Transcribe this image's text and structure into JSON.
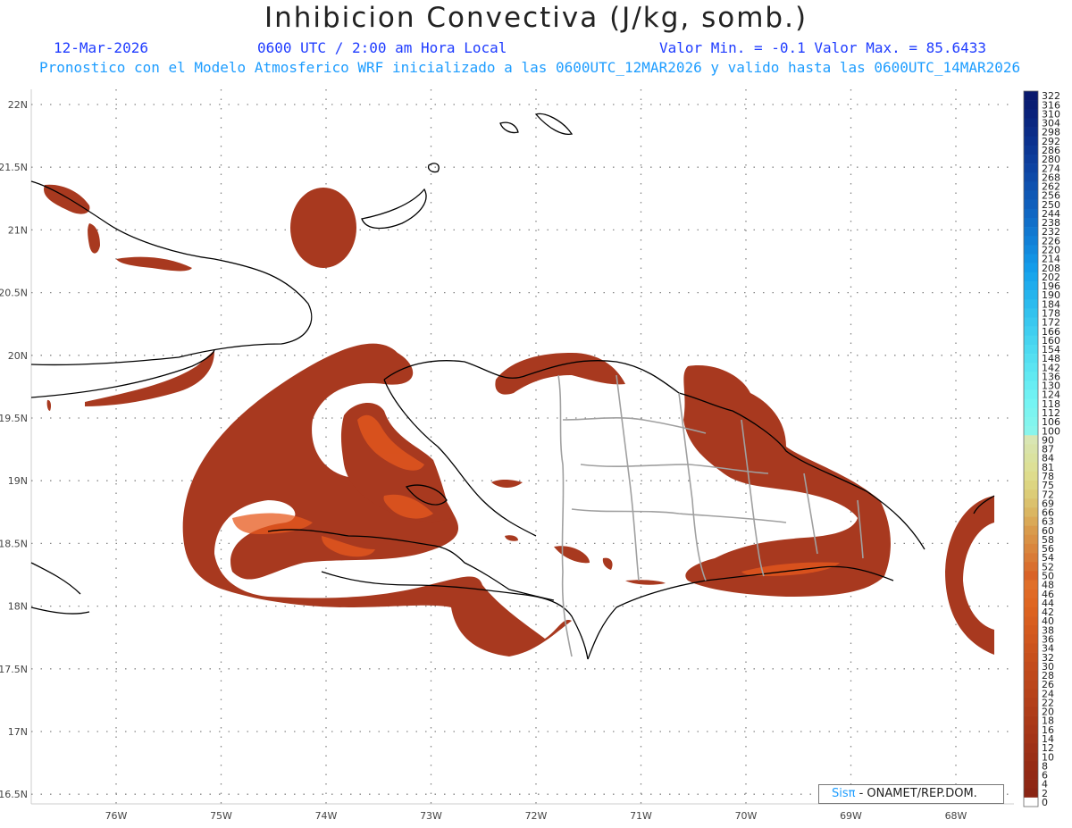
{
  "header": {
    "title": "Inhibicion Convectiva (J/kg, somb.)",
    "date": "12-Mar-2026",
    "time": "0600 UTC / 2:00 am Hora Local",
    "minmax": "Valor Min. = -0.1  Valor Max. = 85.6433",
    "forecast": "Pronostico con el Modelo Atmosferico WRF inicializado a las 0600UTC_12MAR2026 y valido hasta las  0600UTC_14MAR2026"
  },
  "map": {
    "lat_labels": [
      "22N",
      "21.5N",
      "21N",
      "20.5N",
      "20N",
      "19.5N",
      "19N",
      "18.5N",
      "18N",
      "17.5N",
      "17N",
      "16.5N"
    ],
    "lon_labels": [
      "76W",
      "75W",
      "74W",
      "73W",
      "72W",
      "71W",
      "70W",
      "69W",
      "68W"
    ],
    "lat_range": [
      16.5,
      22
    ],
    "lon_range": [
      -76.5,
      -67.8
    ],
    "fill_color": "#a8391f",
    "highlight_color": "#f06020",
    "coast_color": "#000000",
    "border_color": "#a0a0a0"
  },
  "colorbar": {
    "labels": [
      "322",
      "316",
      "310",
      "304",
      "298",
      "292",
      "286",
      "280",
      "274",
      "268",
      "262",
      "256",
      "250",
      "244",
      "238",
      "232",
      "226",
      "220",
      "214",
      "208",
      "202",
      "196",
      "190",
      "184",
      "178",
      "172",
      "166",
      "160",
      "154",
      "148",
      "142",
      "136",
      "130",
      "124",
      "118",
      "112",
      "106",
      "100",
      "90",
      "87",
      "84",
      "81",
      "78",
      "75",
      "72",
      "69",
      "66",
      "63",
      "60",
      "58",
      "56",
      "54",
      "52",
      "50",
      "48",
      "46",
      "44",
      "42",
      "40",
      "38",
      "36",
      "34",
      "32",
      "30",
      "28",
      "26",
      "24",
      "22",
      "20",
      "18",
      "16",
      "14",
      "12",
      "10",
      "8",
      "6",
      "4",
      "2",
      "0"
    ]
  },
  "credit": {
    "sis": "Sisπ",
    "org": " - ONAMET/REP.DOM."
  }
}
